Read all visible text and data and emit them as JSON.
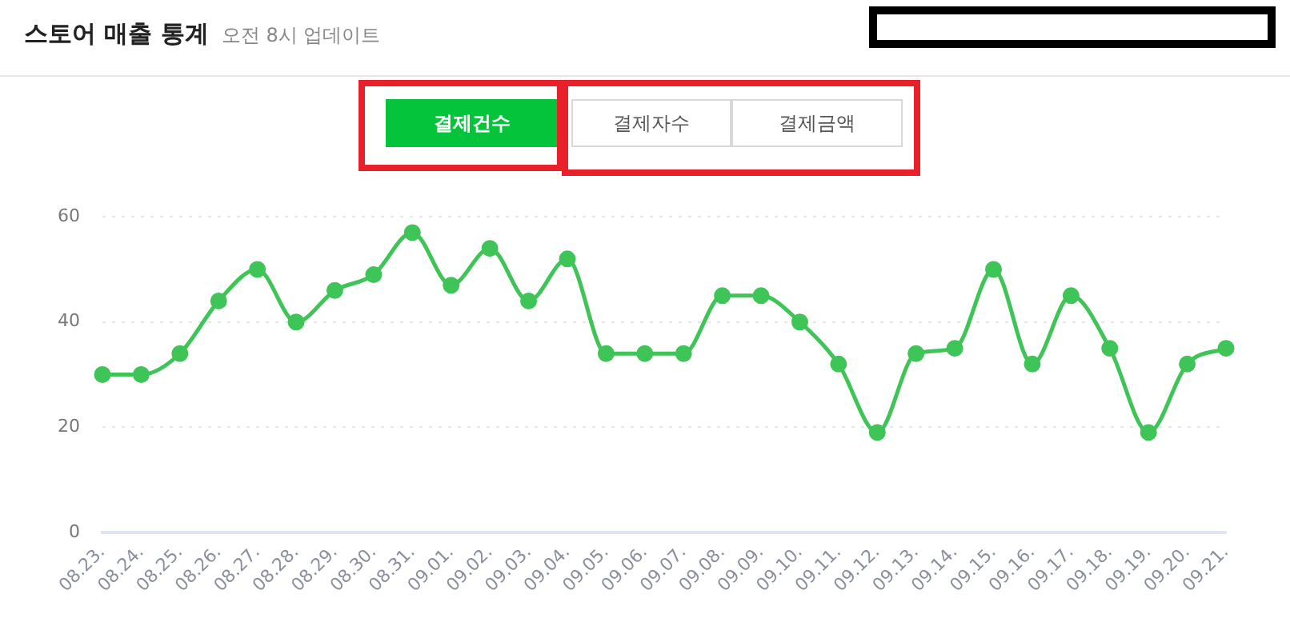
{
  "chart_data": {
    "type": "line",
    "title": "스토어 매출 통계",
    "subtitle": "오전 8시 업데이트",
    "annotations": [
      "결제건수",
      "결제자수",
      "결제금액"
    ],
    "categories": [
      "08.23.",
      "08.24.",
      "08.25.",
      "08.26.",
      "08.27.",
      "08.28.",
      "08.29.",
      "08.30.",
      "08.31.",
      "09.01.",
      "09.02.",
      "09.03.",
      "09.04.",
      "09.05.",
      "09.06.",
      "09.07.",
      "09.08.",
      "09.09.",
      "09.10.",
      "09.11.",
      "09.12.",
      "09.13.",
      "09.14.",
      "09.15.",
      "09.16.",
      "09.17.",
      "09.18.",
      "09.19.",
      "09.20.",
      "09.21."
    ],
    "series": [
      {
        "color": "#3ec457",
        "values": [
          30,
          30,
          34,
          44,
          50,
          40,
          46,
          49,
          57,
          47,
          54,
          44,
          52,
          34,
          34,
          34,
          45,
          45,
          40,
          32,
          19,
          34,
          35,
          50,
          32,
          45,
          35,
          19,
          32,
          35
        ]
      }
    ],
    "ylim": [
      0,
      60
    ],
    "yticks": [
      0,
      20,
      40,
      60
    ],
    "grid": "y",
    "marker": "circle",
    "line_style": "solid",
    "legend": false
  }
}
